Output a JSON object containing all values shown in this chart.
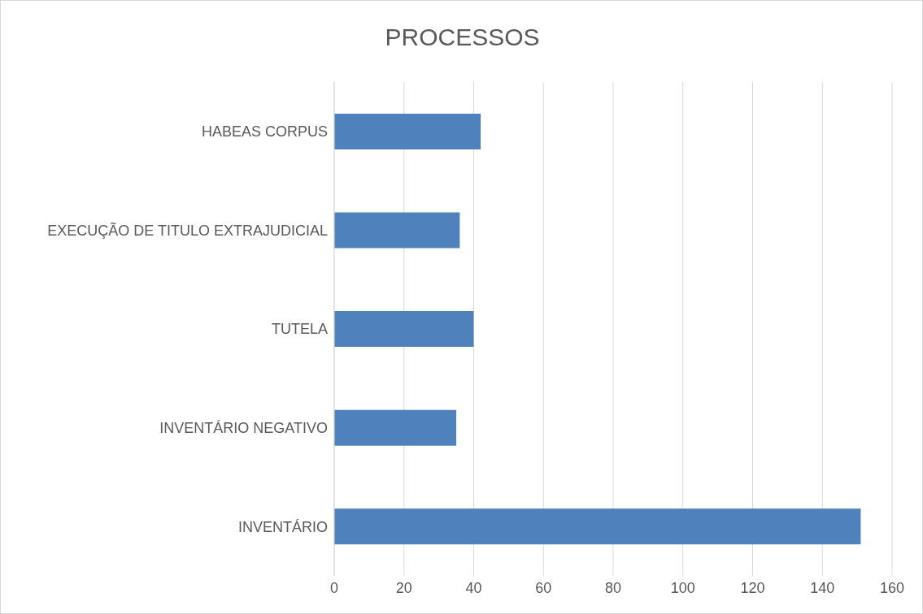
{
  "chart_data": {
    "type": "bar",
    "title": "PROCESSOS",
    "orientation": "horizontal",
    "categories": [
      "HABEAS CORPUS",
      "EXECUÇÃO DE TITULO EXTRAJUDICIAL",
      "TUTELA ",
      "INVENTÁRIO NEGATIVO",
      "INVENTÁRIO"
    ],
    "values": [
      42,
      36,
      40,
      35,
      151
    ],
    "color": "#4f81bd",
    "xlim": [
      0,
      160
    ],
    "xticks": [
      0,
      20,
      40,
      60,
      80,
      100,
      120,
      140,
      160
    ],
    "grid": "x"
  }
}
